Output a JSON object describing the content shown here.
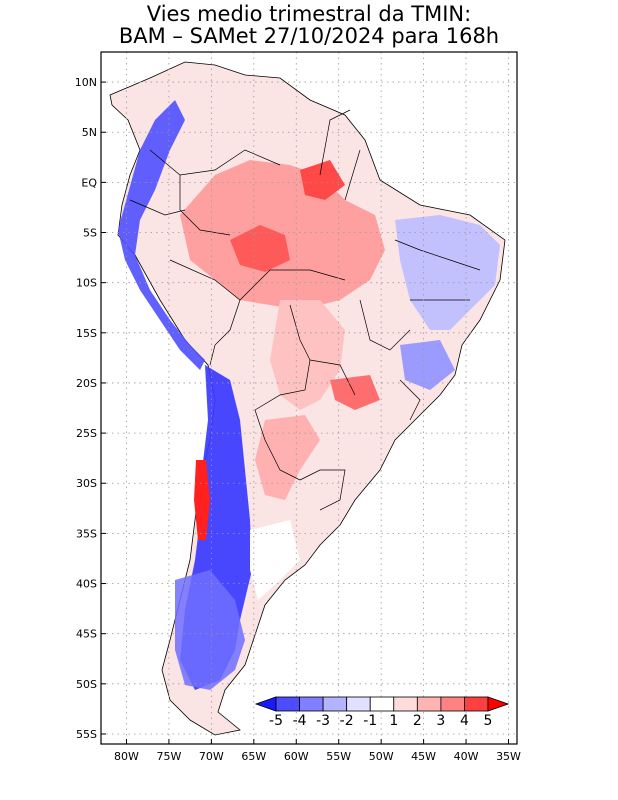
{
  "title": {
    "line1": "Vies medio trimestral da TMIN:",
    "line2": "BAM – SAMet 27/10/2024  para 168h"
  },
  "map": {
    "lon_range": [
      -83,
      -34
    ],
    "lat_range": [
      -56,
      13
    ],
    "lon_ticks": [
      {
        "value": -80,
        "label": "80W"
      },
      {
        "value": -75,
        "label": "75W"
      },
      {
        "value": -70,
        "label": "70W"
      },
      {
        "value": -65,
        "label": "65W"
      },
      {
        "value": -60,
        "label": "60W"
      },
      {
        "value": -55,
        "label": "55W"
      },
      {
        "value": -50,
        "label": "50W"
      },
      {
        "value": -45,
        "label": "45W"
      },
      {
        "value": -40,
        "label": "40W"
      },
      {
        "value": -35,
        "label": "35W"
      }
    ],
    "lat_ticks": [
      {
        "value": 10,
        "label": "10N"
      },
      {
        "value": 5,
        "label": "5N"
      },
      {
        "value": 0,
        "label": "EQ"
      },
      {
        "value": -5,
        "label": "5S"
      },
      {
        "value": -10,
        "label": "10S"
      },
      {
        "value": -15,
        "label": "15S"
      },
      {
        "value": -20,
        "label": "20S"
      },
      {
        "value": -25,
        "label": "25S"
      },
      {
        "value": -30,
        "label": "30S"
      },
      {
        "value": -35,
        "label": "35S"
      },
      {
        "value": -40,
        "label": "40S"
      },
      {
        "value": -45,
        "label": "45S"
      },
      {
        "value": -50,
        "label": "50S"
      },
      {
        "value": -55,
        "label": "55S"
      }
    ],
    "gridlines": true
  },
  "colorbar": {
    "levels": [
      "-5",
      "-4",
      "-3",
      "-2",
      "-1",
      "1",
      "2",
      "3",
      "4",
      "5"
    ],
    "colors": [
      "#1a1aff",
      "#4d4dff",
      "#7f7fff",
      "#b3b3ff",
      "#e1e1ff",
      "#ffffff",
      "#ffdcdc",
      "#ffb4b4",
      "#ff8282",
      "#ff4040",
      "#ff0000"
    ]
  }
}
